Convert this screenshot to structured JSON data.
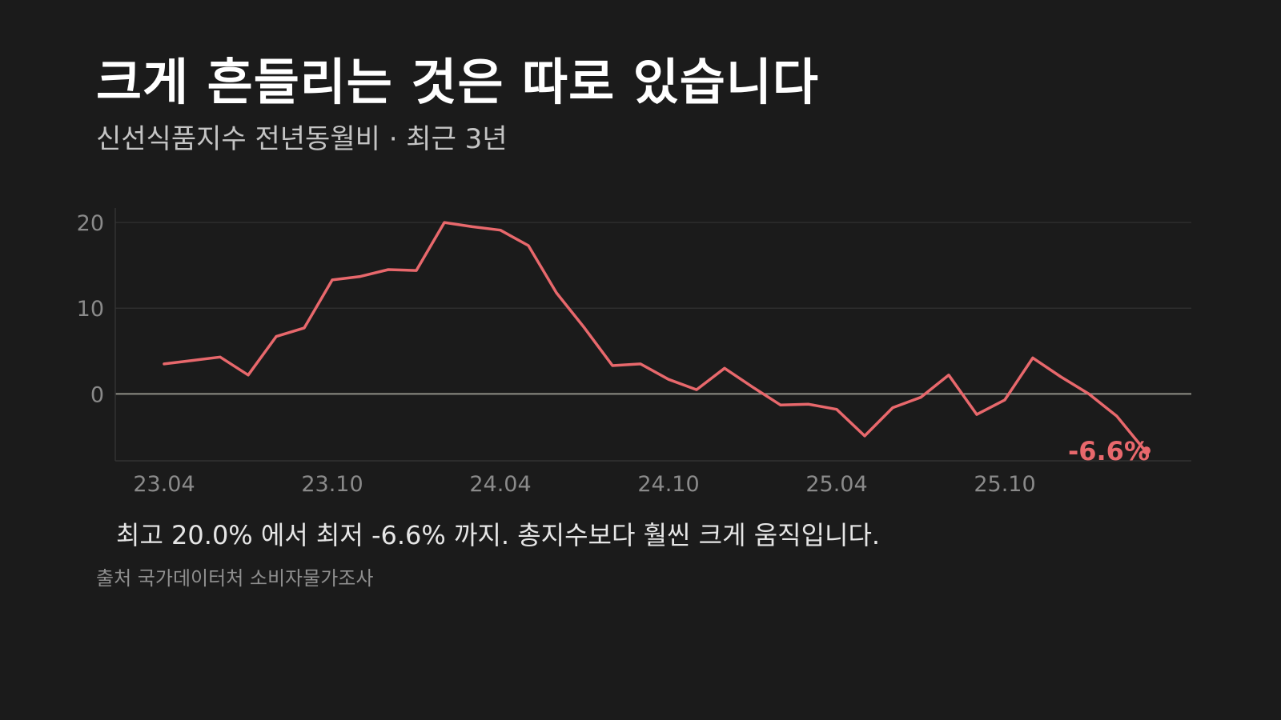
{
  "title": "크게 흔들리는 것은 따로 있습니다",
  "subtitle": "신선식품지수 전년동월비 · 최근 3년",
  "caption": "최고 20.0% 에서 최저 -6.6% 까지. 총지수보다 훨씬 크게 움직입니다.",
  "source": "출처 국가데이터처 소비자물가조사",
  "colors": {
    "background": "#1b1b1b",
    "line": "#e8686c",
    "zero_line": "#8f8f86",
    "grid": "#2e2e2e",
    "tick_text": "#8a8a8a"
  },
  "chart_data": {
    "type": "line",
    "title": "",
    "xlabel": "",
    "ylabel": "",
    "ylim": [
      -7.8,
      21.5
    ],
    "yticks": [
      0,
      10,
      20
    ],
    "grid": true,
    "xtick_labels": [
      "23.04",
      "23.10",
      "24.04",
      "24.10",
      "25.04",
      "25.10"
    ],
    "x": [
      "23.04",
      "23.05",
      "23.06",
      "23.07",
      "23.08",
      "23.09",
      "23.10",
      "23.11",
      "23.12",
      "24.01",
      "24.02",
      "24.03",
      "24.04",
      "24.05",
      "24.06",
      "24.07",
      "24.08",
      "24.09",
      "24.10",
      "24.11",
      "24.12",
      "25.01",
      "25.02",
      "25.03",
      "25.04",
      "25.05",
      "25.06",
      "25.07",
      "25.08",
      "25.09",
      "25.10",
      "25.11",
      "25.12",
      "26.01",
      "26.02",
      "26.03"
    ],
    "series": [
      {
        "values": [
          3.5,
          3.9,
          4.3,
          2.2,
          6.7,
          7.7,
          13.3,
          13.7,
          14.5,
          14.4,
          20.0,
          19.5,
          19.1,
          17.3,
          11.8,
          7.7,
          3.3,
          3.5,
          1.7,
          0.5,
          3.0,
          0.8,
          -1.3,
          -1.2,
          -1.8,
          -4.9,
          -1.6,
          -0.4,
          2.2,
          -2.4,
          -0.7,
          4.2,
          2.0,
          0.0,
          -2.6,
          -6.6
        ]
      }
    ],
    "end_label": "-6.6%"
  }
}
